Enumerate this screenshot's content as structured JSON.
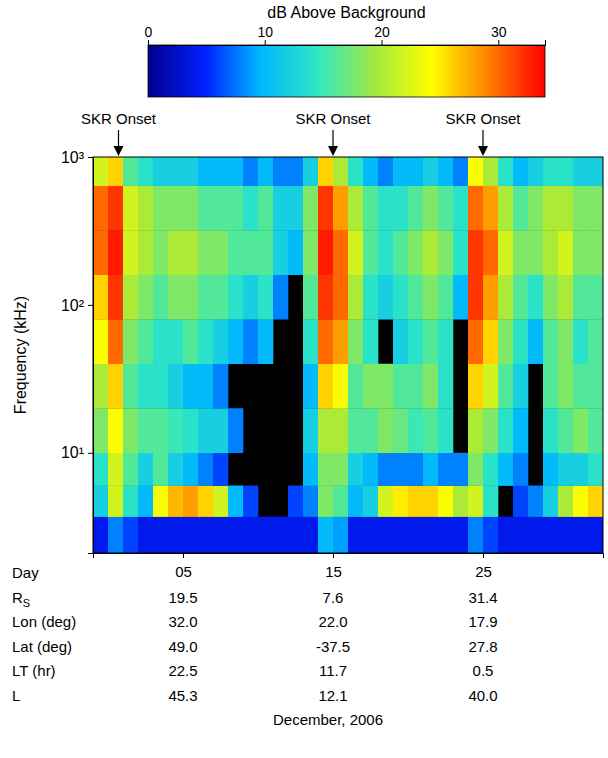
{
  "chart_data": {
    "type": "heatmap",
    "log": "y",
    "ylabel": "Frequency (kHz)",
    "xlabel": "December, 2006",
    "x_tick_row_label": "Day",
    "xlim": [
      -1,
      33
    ],
    "xticks": [
      {
        "value": 5,
        "label": "05"
      },
      15,
      25
    ],
    "ylim": [
      2.1,
      1000
    ],
    "yticks": [
      {
        "value": 10,
        "label": "10¹"
      },
      {
        "value": 100,
        "label": "10²"
      },
      {
        "value": 1000,
        "label": "10³"
      }
    ],
    "x_edges": [
      -1,
      0,
      1,
      2,
      3,
      4,
      5,
      6,
      7,
      8,
      9,
      10,
      11,
      12,
      13,
      14,
      15,
      16,
      17,
      18,
      19,
      20,
      21,
      22,
      23,
      24,
      25,
      26,
      27,
      28,
      29,
      30,
      31,
      32,
      33
    ],
    "y_edges": [
      2.1,
      3.7,
      6,
      10,
      20,
      40,
      80,
      160,
      320,
      640,
      1000
    ],
    "z": [
      [
        4,
        8,
        6,
        4,
        4,
        4,
        4,
        4,
        4,
        4,
        4,
        4,
        4,
        4,
        4,
        10,
        9,
        4,
        4,
        4,
        4,
        4,
        4,
        4,
        4,
        8,
        6,
        4,
        4,
        4,
        4,
        4,
        4,
        4
      ],
      [
        12,
        22,
        14,
        10,
        24,
        27,
        28,
        26,
        22,
        10,
        6,
        null,
        null,
        6,
        8,
        18,
        16,
        10,
        12,
        22,
        25,
        26,
        26,
        24,
        20,
        22,
        14,
        null,
        6,
        8,
        12,
        20,
        24,
        26
      ],
      [
        14,
        22,
        16,
        12,
        16,
        12,
        10,
        8,
        6,
        null,
        null,
        null,
        null,
        null,
        10,
        18,
        18,
        12,
        10,
        8,
        8,
        8,
        10,
        8,
        8,
        18,
        14,
        10,
        8,
        null,
        10,
        12,
        12,
        14
      ],
      [
        18,
        24,
        18,
        16,
        16,
        15,
        14,
        12,
        12,
        8,
        null,
        null,
        null,
        null,
        12,
        20,
        20,
        16,
        16,
        18,
        17,
        15,
        16,
        14,
        null,
        20,
        18,
        14,
        10,
        null,
        14,
        16,
        18,
        16
      ],
      [
        20,
        26,
        16,
        14,
        14,
        12,
        10,
        10,
        8,
        null,
        null,
        null,
        null,
        null,
        10,
        26,
        24,
        16,
        18,
        18,
        16,
        16,
        18,
        14,
        null,
        26,
        22,
        16,
        12,
        null,
        16,
        18,
        16,
        16
      ],
      [
        24,
        30,
        18,
        16,
        14,
        14,
        16,
        14,
        12,
        10,
        8,
        10,
        null,
        null,
        14,
        30,
        28,
        18,
        14,
        null,
        12,
        14,
        16,
        14,
        null,
        30,
        26,
        18,
        14,
        10,
        16,
        18,
        14,
        16
      ],
      [
        26,
        32,
        20,
        18,
        16,
        18,
        18,
        16,
        16,
        14,
        12,
        14,
        8,
        null,
        16,
        32,
        30,
        20,
        14,
        12,
        14,
        16,
        18,
        16,
        10,
        32,
        28,
        20,
        16,
        14,
        18,
        20,
        16,
        16
      ],
      [
        30,
        33,
        22,
        20,
        18,
        20,
        20,
        18,
        18,
        16,
        16,
        16,
        12,
        10,
        18,
        33,
        30,
        22,
        16,
        14,
        16,
        18,
        20,
        18,
        14,
        32,
        30,
        22,
        18,
        18,
        20,
        22,
        18,
        18
      ],
      [
        30,
        32,
        22,
        20,
        18,
        18,
        18,
        16,
        16,
        16,
        14,
        16,
        12,
        12,
        18,
        32,
        28,
        20,
        16,
        14,
        14,
        16,
        18,
        16,
        14,
        30,
        28,
        20,
        16,
        18,
        20,
        20,
        18,
        18
      ],
      [
        22,
        26,
        16,
        14,
        12,
        12,
        12,
        10,
        10,
        10,
        8,
        10,
        8,
        8,
        12,
        26,
        20,
        14,
        10,
        8,
        10,
        10,
        12,
        10,
        8,
        24,
        20,
        14,
        10,
        12,
        14,
        14,
        12,
        12
      ]
    ],
    "colorbar": {
      "title": "dB Above Background",
      "range": [
        0,
        34
      ],
      "ticks": [
        0,
        10,
        20,
        30
      ]
    },
    "annotations": [
      {
        "text": "SKR Onset",
        "x": 0.7
      },
      {
        "text": "SKR Onset",
        "x": 15
      },
      {
        "text": "SKR Onset",
        "x": 25
      }
    ],
    "ephemeris": [
      {
        "label": "R",
        "label_subscript": "S",
        "values": [
          19.5,
          7.6,
          31.4
        ],
        "value_labels": [
          "19.5",
          "7.6",
          "31.4"
        ]
      },
      {
        "label": "Lon (deg)",
        "values": [
          32.0,
          22.0,
          17.9
        ],
        "value_labels": [
          "32.0",
          "22.0",
          "17.9"
        ]
      },
      {
        "label": "Lat (deg)",
        "values": [
          49.0,
          -37.5,
          27.8
        ],
        "value_labels": [
          "49.0",
          "-37.5",
          "27.8"
        ]
      },
      {
        "label": "LT (hr)",
        "values": [
          22.5,
          11.7,
          0.5
        ],
        "value_labels": [
          "22.5",
          "11.7",
          "0.5"
        ]
      },
      {
        "label": "L",
        "values": [
          45.3,
          12.1,
          40.0
        ],
        "value_labels": [
          "45.3",
          "12.1",
          "40.0"
        ]
      }
    ]
  }
}
